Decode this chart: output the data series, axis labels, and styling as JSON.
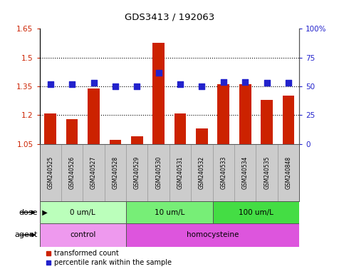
{
  "title": "GDS3413 / 192063",
  "samples": [
    "GSM240525",
    "GSM240526",
    "GSM240527",
    "GSM240528",
    "GSM240529",
    "GSM240530",
    "GSM240531",
    "GSM240532",
    "GSM240533",
    "GSM240534",
    "GSM240535",
    "GSM240848"
  ],
  "red_values": [
    1.21,
    1.18,
    1.34,
    1.07,
    1.09,
    1.575,
    1.21,
    1.13,
    1.36,
    1.36,
    1.28,
    1.3
  ],
  "blue_values": [
    52,
    52,
    53,
    50,
    50,
    62,
    52,
    50,
    54,
    54,
    53,
    53
  ],
  "ylim_left": [
    1.05,
    1.65
  ],
  "ylim_right": [
    0,
    100
  ],
  "yticks_left": [
    1.05,
    1.2,
    1.35,
    1.5,
    1.65
  ],
  "yticks_right": [
    0,
    25,
    50,
    75,
    100
  ],
  "ytick_labels_left": [
    "1.05",
    "1.2",
    "1.35",
    "1.5",
    "1.65"
  ],
  "ytick_labels_right": [
    "0",
    "25",
    "50",
    "75",
    "100%"
  ],
  "hlines": [
    1.2,
    1.35,
    1.5
  ],
  "bar_color": "#cc2200",
  "dot_color": "#2222cc",
  "dose_groups": [
    {
      "label": "0 um/L",
      "start": 0,
      "end": 4,
      "color": "#bbffbb"
    },
    {
      "label": "10 um/L",
      "start": 4,
      "end": 8,
      "color": "#77ee77"
    },
    {
      "label": "100 um/L",
      "start": 8,
      "end": 12,
      "color": "#44dd44"
    }
  ],
  "agent_groups": [
    {
      "label": "control",
      "start": 0,
      "end": 4,
      "color": "#ee99ee"
    },
    {
      "label": "homocysteine",
      "start": 4,
      "end": 12,
      "color": "#dd55dd"
    }
  ],
  "bar_width": 0.55,
  "dot_size": 40,
  "plot_bg": "#ffffff",
  "tick_color_left": "#cc2200",
  "tick_color_right": "#2222cc",
  "legend_red_label": "transformed count",
  "legend_blue_label": "percentile rank within the sample",
  "sample_box_color": "#cccccc",
  "sample_box_edge": "#999999"
}
